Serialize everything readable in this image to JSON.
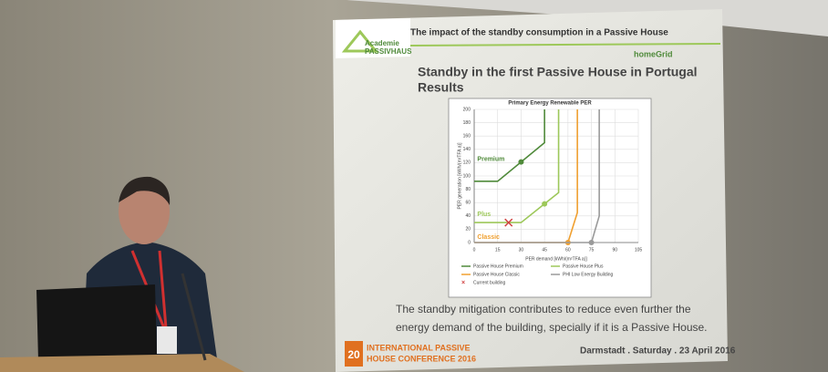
{
  "slide": {
    "header": "The impact of the standby consumption in a Passive House",
    "logo": [
      "Academie",
      "PASSIVHAUS"
    ],
    "partner": "homeGrid",
    "title": "Standby in the first Passive House in Portugal",
    "subtitle": "Results",
    "body": [
      "The standby mitigation contributes to reduce even further the",
      "energy demand of the building, specially if it is a Passive House."
    ],
    "footer": {
      "number": "20",
      "conference": [
        "INTERNATIONAL PASSIVE",
        "HOUSE CONFERENCE 2016"
      ],
      "place": "Darmstadt . Saturday . 23 April 2016"
    }
  },
  "chart_data": {
    "type": "line",
    "title": "Primary Energy Renewable PER",
    "xlabel": "PER demand [kWh/(m²TFA a)]",
    "ylabel": "PER generation [kWh/(m²TFA a)]",
    "xlim": [
      0,
      105
    ],
    "ylim": [
      0,
      200
    ],
    "xticks": [
      0,
      15,
      30,
      45,
      60,
      75,
      90,
      105
    ],
    "yticks": [
      0,
      20,
      40,
      60,
      80,
      100,
      120,
      140,
      160,
      180,
      200
    ],
    "grid": true,
    "series": [
      {
        "name": "Passive House Premium",
        "color": "#4f8a3a",
        "x": [
          0,
          15,
          45,
          45
        ],
        "values": [
          92,
          92,
          150,
          200
        ],
        "marker": {
          "x": 30,
          "y": 121
        }
      },
      {
        "name": "Passive House Plus",
        "color": "#9dc85a",
        "x": [
          0,
          30,
          54,
          54
        ],
        "values": [
          30,
          30,
          75,
          200
        ],
        "marker": {
          "x": 45,
          "y": 58
        }
      },
      {
        "name": "Passive House Classic",
        "color": "#f0a030",
        "x": [
          0,
          60,
          66,
          66
        ],
        "values": [
          0,
          0,
          45,
          200
        ],
        "marker": {
          "x": 60,
          "y": 0
        }
      },
      {
        "name": "PHI Low Energy Building",
        "color": "#9a9a9a",
        "x": [
          0,
          75,
          80,
          80
        ],
        "values": [
          0,
          0,
          40,
          200
        ],
        "marker": {
          "x": 75,
          "y": 0
        }
      },
      {
        "name": "Current building",
        "color": "#d04040",
        "style": "cross",
        "x": [
          22
        ],
        "values": [
          30
        ]
      }
    ],
    "annotations": [
      {
        "text": "Premium",
        "x": 2,
        "y": 125,
        "color": "#4f8a3a"
      },
      {
        "text": "Plus",
        "x": 2,
        "y": 42,
        "color": "#9dc85a"
      },
      {
        "text": "Classic",
        "x": 2,
        "y": 8,
        "color": "#f0a030"
      }
    ]
  }
}
